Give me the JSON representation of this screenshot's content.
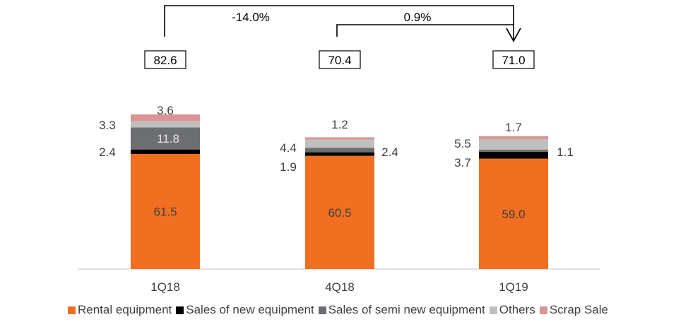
{
  "chart_data": {
    "type": "bar",
    "stacked": true,
    "categories": [
      "1Q18",
      "4Q18",
      "1Q19"
    ],
    "series": [
      {
        "name": "Rental equipment",
        "color": "#F26F21",
        "values": [
          61.5,
          60.5,
          59.0
        ],
        "labels": [
          "61.5",
          "60.5",
          "59.0"
        ]
      },
      {
        "name": "Sales of new equipment",
        "color": "#000000",
        "values": [
          2.4,
          1.9,
          3.7
        ],
        "labels": [
          "2.4",
          "1.9",
          "3.7"
        ]
      },
      {
        "name": "Sales of semi new equipment",
        "color": "#6D6E71",
        "values": [
          11.8,
          2.4,
          1.1
        ],
        "labels": [
          "11.8",
          "2.4",
          "1.1"
        ]
      },
      {
        "name": "Others",
        "color": "#BFBFBF",
        "values": [
          3.3,
          4.4,
          5.5
        ],
        "labels": [
          "3.3",
          "4.4",
          "5.5"
        ]
      },
      {
        "name": "Scrap Sale",
        "color": "#D99594",
        "values": [
          3.6,
          1.2,
          1.7
        ],
        "labels": [
          "3.6",
          "1.2",
          "1.7"
        ]
      }
    ],
    "totals": [
      "82.6",
      "70.4",
      "71.0"
    ],
    "changes": [
      {
        "from": "1Q18",
        "to": "1Q19",
        "label": "-14.0%"
      },
      {
        "from": "4Q18",
        "to": "1Q19",
        "label": "0.9%"
      }
    ],
    "title": "",
    "xlabel": "",
    "ylabel": "",
    "ylim": [
      0,
      90
    ],
    "grid": false,
    "legend_position": "bottom"
  }
}
